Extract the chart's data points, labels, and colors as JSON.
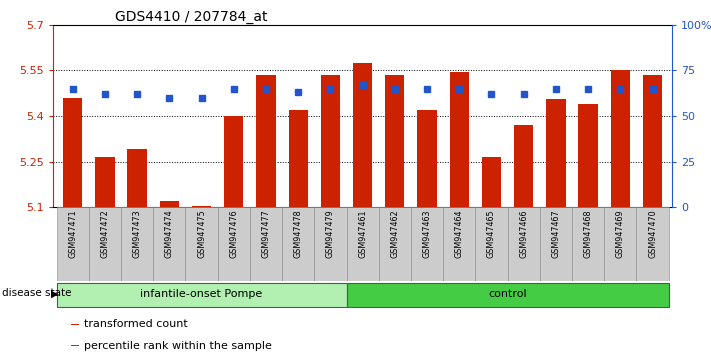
{
  "title": "GDS4410 / 207784_at",
  "samples": [
    "GSM947471",
    "GSM947472",
    "GSM947473",
    "GSM947474",
    "GSM947475",
    "GSM947476",
    "GSM947477",
    "GSM947478",
    "GSM947479",
    "GSM947461",
    "GSM947462",
    "GSM947463",
    "GSM947464",
    "GSM947465",
    "GSM947466",
    "GSM947467",
    "GSM947468",
    "GSM947469",
    "GSM947470"
  ],
  "bar_values": [
    5.46,
    5.265,
    5.29,
    5.12,
    5.105,
    5.4,
    5.535,
    5.42,
    5.535,
    5.575,
    5.535,
    5.42,
    5.545,
    5.265,
    5.37,
    5.455,
    5.44,
    5.55,
    5.535
  ],
  "dot_values_pct": [
    65,
    62,
    62,
    60,
    60,
    65,
    65,
    63,
    65,
    67,
    65,
    65,
    65,
    62,
    62,
    65,
    65,
    65,
    65
  ],
  "bar_color": "#cc2200",
  "dot_color": "#2255cc",
  "ylim_left": [
    5.1,
    5.7
  ],
  "ylim_right": [
    0,
    100
  ],
  "yticks_left": [
    5.1,
    5.25,
    5.4,
    5.55,
    5.7
  ],
  "yticks_right": [
    0,
    25,
    50,
    75,
    100
  ],
  "ytick_labels_right": [
    "0",
    "25",
    "50",
    "75",
    "100%"
  ],
  "group1_label": "infantile-onset Pompe",
  "group2_label": "control",
  "n_group1": 9,
  "n_group2": 10,
  "xlabel": "disease state",
  "legend_bar": "transformed count",
  "legend_dot": "percentile rank within the sample",
  "background_group1": "#b2f0b2",
  "background_group2": "#44cc44",
  "sample_bg": "#cccccc"
}
